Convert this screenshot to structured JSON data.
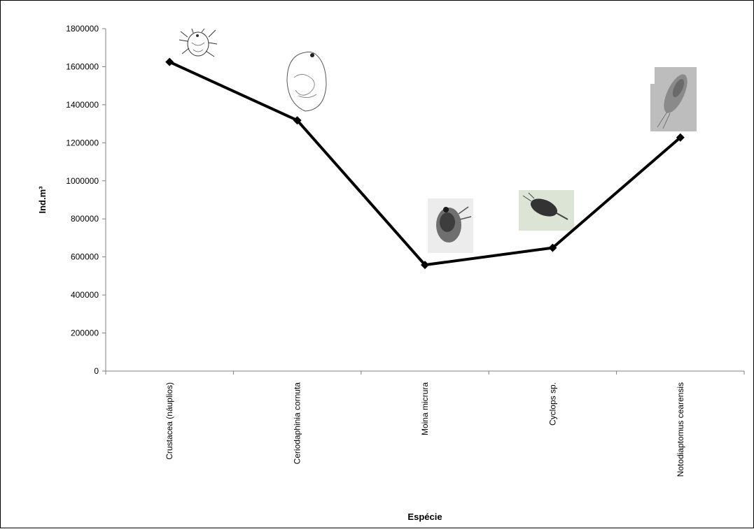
{
  "chart_data": {
    "type": "line",
    "title": "",
    "xlabel": "Espécie",
    "ylabel": "Ind.m³",
    "categories": [
      "Crustacea (náuplios)",
      "Ceriodaphinia cornuta",
      "Moina micrura",
      "Cyclops sp.",
      "Notodiaptomus cearensis"
    ],
    "series": [
      {
        "values": [
          1625000,
          1318000,
          558000,
          648000,
          1228000
        ]
      }
    ],
    "ylim": [
      0,
      1800000
    ],
    "yticks": [
      "0",
      "200000",
      "400000",
      "600000",
      "800000",
      "1000000",
      "1200000",
      "1400000",
      "1600000",
      "1800000"
    ],
    "grid": false,
    "legend": "none",
    "line_color": "#000000",
    "marker": "diamond",
    "images": [
      "nauplius-drawing",
      "ceriodaphnia-drawing",
      "moina-photo",
      "cyclops-photo",
      "notodiaptomus-photo"
    ]
  }
}
